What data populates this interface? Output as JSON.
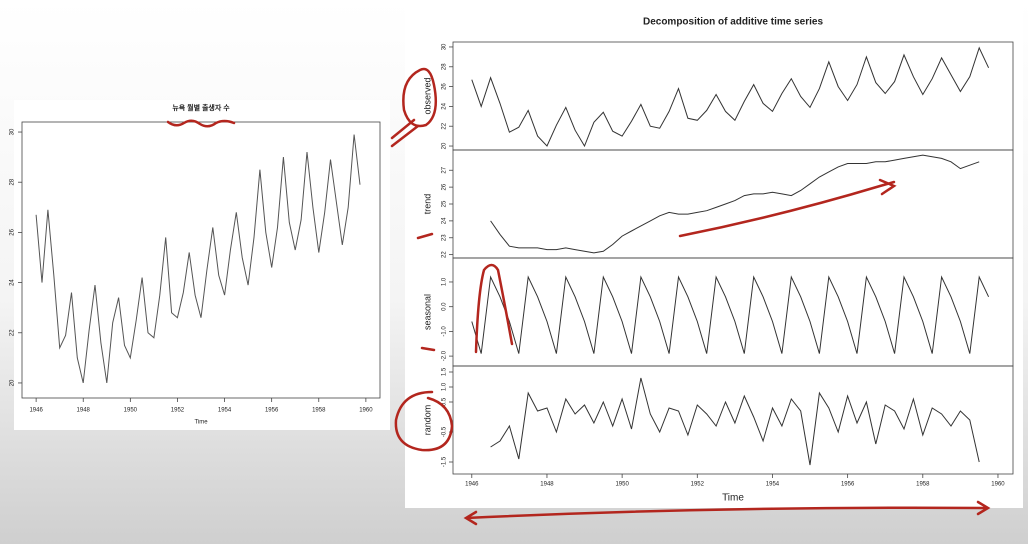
{
  "chart_data": [
    {
      "type": "line",
      "title": "뉴욕 월별 출생자 수",
      "x_label": "Time",
      "color": "#555555",
      "xlim": [
        1945.4,
        1960.6
      ],
      "xticks": [
        1946,
        1948,
        1950,
        1952,
        1954,
        1956,
        1958,
        1960
      ],
      "ylim": [
        19.4,
        30.4
      ],
      "yticks": [
        20,
        22,
        24,
        26,
        28,
        30
      ],
      "x": [
        1946,
        1946.25,
        1946.5,
        1946.75,
        1947,
        1947.25,
        1947.5,
        1947.75,
        1948,
        1948.25,
        1948.5,
        1948.75,
        1949,
        1949.25,
        1949.5,
        1949.75,
        1950,
        1950.25,
        1950.5,
        1950.75,
        1951,
        1951.25,
        1951.5,
        1951.75,
        1952,
        1952.25,
        1952.5,
        1952.75,
        1953,
        1953.25,
        1953.5,
        1953.75,
        1954,
        1954.25,
        1954.5,
        1954.75,
        1955,
        1955.25,
        1955.5,
        1955.75,
        1956,
        1956.25,
        1956.5,
        1956.75,
        1957,
        1957.25,
        1957.5,
        1957.75,
        1958,
        1958.25,
        1958.5,
        1958.75,
        1959,
        1959.25,
        1959.5,
        1959.75
      ],
      "values": [
        26.7,
        24.0,
        26.9,
        24.3,
        21.4,
        21.9,
        23.6,
        21.0,
        20.0,
        22.1,
        23.9,
        21.6,
        20.0,
        22.4,
        23.4,
        21.5,
        21.0,
        22.5,
        24.2,
        22.0,
        21.8,
        23.5,
        25.8,
        22.8,
        22.6,
        23.6,
        25.2,
        23.5,
        22.6,
        24.5,
        26.2,
        24.3,
        23.5,
        25.3,
        26.8,
        25.0,
        23.9,
        25.8,
        28.5,
        26.0,
        24.6,
        26.2,
        29.0,
        26.4,
        25.3,
        26.5,
        29.2,
        27.0,
        25.2,
        26.8,
        28.9,
        27.2,
        25.5,
        27.0,
        29.9,
        27.9
      ]
    },
    {
      "type": "line",
      "title": "Decomposition of additive time series",
      "y_label": "observed",
      "color": "#333333",
      "xlim": [
        1945.5,
        1960.4
      ],
      "ylim": [
        19.6,
        30.5
      ],
      "yticks": [
        20,
        22,
        24,
        26,
        28,
        30
      ],
      "x": [
        1946,
        1946.25,
        1946.5,
        1946.75,
        1947,
        1947.25,
        1947.5,
        1947.75,
        1948,
        1948.25,
        1948.5,
        1948.75,
        1949,
        1949.25,
        1949.5,
        1949.75,
        1950,
        1950.25,
        1950.5,
        1950.75,
        1951,
        1951.25,
        1951.5,
        1951.75,
        1952,
        1952.25,
        1952.5,
        1952.75,
        1953,
        1953.25,
        1953.5,
        1953.75,
        1954,
        1954.25,
        1954.5,
        1954.75,
        1955,
        1955.25,
        1955.5,
        1955.75,
        1956,
        1956.25,
        1956.5,
        1956.75,
        1957,
        1957.25,
        1957.5,
        1957.75,
        1958,
        1958.25,
        1958.5,
        1958.75,
        1959,
        1959.25,
        1959.5,
        1959.75
      ],
      "values": [
        26.7,
        24.0,
        26.9,
        24.3,
        21.4,
        21.9,
        23.6,
        21.0,
        20.0,
        22.1,
        23.9,
        21.6,
        20.0,
        22.4,
        23.4,
        21.5,
        21.0,
        22.5,
        24.2,
        22.0,
        21.8,
        23.5,
        25.8,
        22.8,
        22.6,
        23.6,
        25.2,
        23.5,
        22.6,
        24.5,
        26.2,
        24.3,
        23.5,
        25.3,
        26.8,
        25.0,
        23.9,
        25.8,
        28.5,
        26.0,
        24.6,
        26.2,
        29.0,
        26.4,
        25.3,
        26.5,
        29.2,
        27.0,
        25.2,
        26.8,
        28.9,
        27.2,
        25.5,
        27.0,
        29.9,
        27.9
      ]
    },
    {
      "type": "line",
      "y_label": "trend",
      "color": "#333333",
      "xlim": [
        1945.5,
        1960.4
      ],
      "ylim": [
        21.8,
        28.2
      ],
      "yticks": [
        22,
        23,
        24,
        25,
        26,
        27
      ],
      "x": [
        1946,
        1946.25,
        1946.5,
        1946.75,
        1947,
        1947.25,
        1947.5,
        1947.75,
        1948,
        1948.25,
        1948.5,
        1948.75,
        1949,
        1949.25,
        1949.5,
        1949.75,
        1950,
        1950.25,
        1950.5,
        1950.75,
        1951,
        1951.25,
        1951.5,
        1951.75,
        1952,
        1952.25,
        1952.5,
        1952.75,
        1953,
        1953.25,
        1953.5,
        1953.75,
        1954,
        1954.25,
        1954.5,
        1954.75,
        1955,
        1955.25,
        1955.5,
        1955.75,
        1956,
        1956.25,
        1956.5,
        1956.75,
        1957,
        1957.25,
        1957.5,
        1957.75,
        1958,
        1958.25,
        1958.5,
        1958.75,
        1959,
        1959.25,
        1959.5,
        1959.75
      ],
      "values": [
        null,
        null,
        24.0,
        23.2,
        22.5,
        22.4,
        22.4,
        22.4,
        22.3,
        22.3,
        22.4,
        22.3,
        22.2,
        22.1,
        22.2,
        22.6,
        23.1,
        23.4,
        23.7,
        24.0,
        24.3,
        24.5,
        24.4,
        24.4,
        24.5,
        24.6,
        24.8,
        25.0,
        25.2,
        25.5,
        25.6,
        25.6,
        25.7,
        25.6,
        25.5,
        25.8,
        26.2,
        26.6,
        26.9,
        27.2,
        27.4,
        27.4,
        27.4,
        27.5,
        27.5,
        27.6,
        27.7,
        27.8,
        27.9,
        27.8,
        27.7,
        27.5,
        27.1,
        27.3,
        27.5,
        null
      ]
    },
    {
      "type": "line",
      "y_label": "seasonal",
      "color": "#333333",
      "xlim": [
        1945.5,
        1960.4
      ],
      "ylim": [
        -2.4,
        1.97
      ],
      "yticks": [
        {
          "value": -2,
          "label": "-2.0"
        },
        {
          "value": -1,
          "label": "-1.0"
        },
        {
          "value": 0,
          "label": "0.0"
        },
        {
          "value": 1,
          "label": "1.0"
        }
      ],
      "x": [
        1946,
        1946.25,
        1946.5,
        1946.75,
        1947,
        1947.25,
        1947.5,
        1947.75,
        1948,
        1948.25,
        1948.5,
        1948.75,
        1949,
        1949.25,
        1949.5,
        1949.75,
        1950,
        1950.25,
        1950.5,
        1950.75,
        1951,
        1951.25,
        1951.5,
        1951.75,
        1952,
        1952.25,
        1952.5,
        1952.75,
        1953,
        1953.25,
        1953.5,
        1953.75,
        1954,
        1954.25,
        1954.5,
        1954.75,
        1955,
        1955.25,
        1955.5,
        1955.75,
        1956,
        1956.25,
        1956.5,
        1956.75,
        1957,
        1957.25,
        1957.5,
        1957.75,
        1958,
        1958.25,
        1958.5,
        1958.75,
        1959,
        1959.25,
        1959.5,
        1959.75
      ],
      "values": [
        -0.6,
        -1.9,
        1.2,
        0.4,
        -0.6,
        -1.9,
        1.2,
        0.4,
        -0.6,
        -1.9,
        1.2,
        0.4,
        -0.6,
        -1.9,
        1.2,
        0.4,
        -0.6,
        -1.9,
        1.2,
        0.4,
        -0.6,
        -1.9,
        1.2,
        0.4,
        -0.6,
        -1.9,
        1.2,
        0.4,
        -0.6,
        -1.9,
        1.2,
        0.4,
        -0.6,
        -1.9,
        1.2,
        0.4,
        -0.6,
        -1.9,
        1.2,
        0.4,
        -0.6,
        -1.9,
        1.2,
        0.4,
        -0.6,
        -1.9,
        1.2,
        0.4,
        -0.6,
        -1.9,
        1.2,
        0.4,
        -0.6,
        -1.9,
        1.2,
        0.4
      ]
    },
    {
      "type": "line",
      "y_label": "random",
      "x_label": "Time",
      "color": "#333333",
      "xlim": [
        1945.5,
        1960.4
      ],
      "xticks": [
        1946,
        1948,
        1950,
        1952,
        1954,
        1956,
        1958,
        1960
      ],
      "ylim": [
        -1.9,
        1.7
      ],
      "yticks": [
        -1.5,
        -0.5,
        0.5,
        {
          "value": 1,
          "label": "1.0"
        },
        1.5
      ],
      "x": [
        1946,
        1946.25,
        1946.5,
        1946.75,
        1947,
        1947.25,
        1947.5,
        1947.75,
        1948,
        1948.25,
        1948.5,
        1948.75,
        1949,
        1949.25,
        1949.5,
        1949.75,
        1950,
        1950.25,
        1950.5,
        1950.75,
        1951,
        1951.25,
        1951.5,
        1951.75,
        1952,
        1952.25,
        1952.5,
        1952.75,
        1953,
        1953.25,
        1953.5,
        1953.75,
        1954,
        1954.25,
        1954.5,
        1954.75,
        1955,
        1955.25,
        1955.5,
        1955.75,
        1956,
        1956.25,
        1956.5,
        1956.75,
        1957,
        1957.25,
        1957.5,
        1957.75,
        1958,
        1958.25,
        1958.5,
        1958.75,
        1959,
        1959.25,
        1959.5,
        1959.75
      ],
      "values": [
        null,
        null,
        -1.0,
        -0.8,
        -0.3,
        -1.4,
        0.8,
        0.2,
        0.3,
        -0.5,
        0.6,
        0.1,
        0.4,
        -0.2,
        0.5,
        -0.3,
        0.6,
        -0.4,
        1.3,
        0.1,
        -0.5,
        0.3,
        0.2,
        -0.6,
        0.4,
        0.1,
        -0.3,
        0.5,
        -0.2,
        0.7,
        0.0,
        -0.8,
        0.3,
        -0.3,
        0.6,
        0.2,
        -1.6,
        0.8,
        0.3,
        -0.5,
        0.7,
        -0.2,
        0.5,
        -0.9,
        0.4,
        0.2,
        -0.4,
        0.6,
        -0.6,
        0.3,
        0.1,
        -0.3,
        0.2,
        -0.1,
        -1.5,
        null
      ]
    }
  ]
}
